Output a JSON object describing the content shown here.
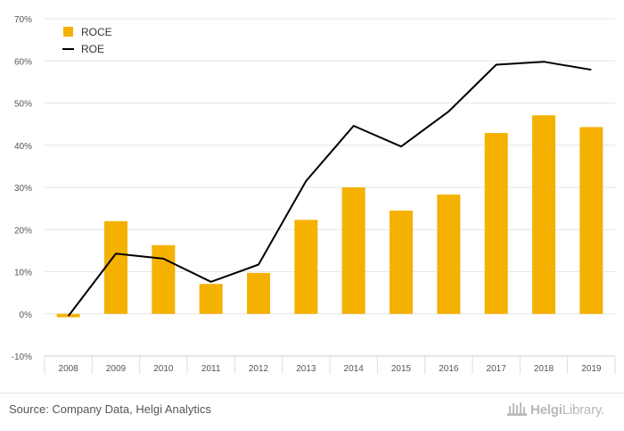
{
  "chart_data": {
    "type": "bar",
    "categories": [
      "2008",
      "2009",
      "2010",
      "2011",
      "2012",
      "2013",
      "2014",
      "2015",
      "2016",
      "2017",
      "2018",
      "2019"
    ],
    "series": [
      {
        "name": "ROCE",
        "kind": "bar",
        "color": "#f5b100",
        "values": [
          -0.8,
          22.0,
          16.3,
          7.1,
          9.7,
          22.3,
          30.0,
          24.5,
          28.3,
          42.9,
          47.1,
          44.3
        ]
      },
      {
        "name": "ROE",
        "kind": "line",
        "color": "#000000",
        "values": [
          -0.5,
          14.3,
          13.1,
          7.6,
          11.7,
          31.5,
          44.6,
          39.7,
          48.0,
          59.1,
          59.8,
          57.9
        ]
      }
    ],
    "yticks": [
      "-10%",
      "0%",
      "10%",
      "20%",
      "30%",
      "40%",
      "50%",
      "60%",
      "70%"
    ],
    "ylim": [
      -10,
      70
    ],
    "grid": true,
    "legend": "top-left"
  },
  "footer": {
    "source": "Source: Company Data, Helgi Analytics",
    "logo_bold": "Helgi",
    "logo_light": "Library."
  }
}
